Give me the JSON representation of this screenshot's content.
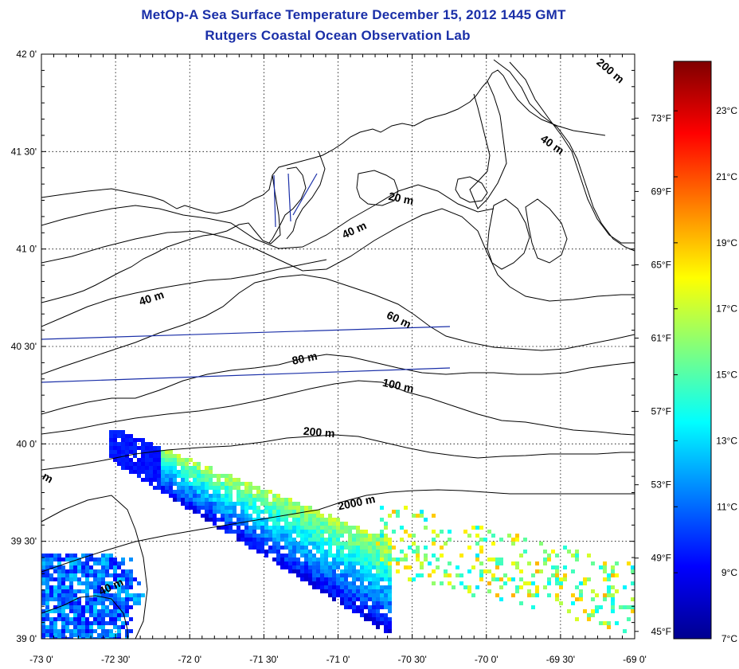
{
  "title": {
    "line1": "MetOp-A Sea Surface Temperature December 15, 2012 1445 GMT",
    "line2": "Rutgers Coastal Ocean Observation Lab"
  },
  "map": {
    "lon_range": [
      -73,
      -69
    ],
    "lat_range": [
      39,
      42
    ],
    "x_ticks": [
      "-73 0'",
      "-72 30'",
      "-72 0'",
      "-71 30'",
      "-71 0'",
      "-70 30'",
      "-70 0'",
      "-69 30'",
      "-69 0'"
    ],
    "y_ticks": [
      "39 0'",
      "39 30'",
      "40 0'",
      "40 30'",
      "41 0'",
      "41 30'",
      "42 0'"
    ],
    "grid": "dotted",
    "land_color": "#ffffff",
    "contour_color": "#000000",
    "transect_color": "#1a2fa8"
  },
  "contour_labels": [
    {
      "text": "200 m",
      "lon": -69.18,
      "lat": 41.9,
      "angle": 40
    },
    {
      "text": "40 m",
      "lon": -69.57,
      "lat": 41.52,
      "angle": 35
    },
    {
      "text": "20 m",
      "lon": -70.58,
      "lat": 41.24,
      "angle": 12
    },
    {
      "text": "40 m",
      "lon": -70.88,
      "lat": 41.08,
      "angle": -25
    },
    {
      "text": "40 m",
      "lon": -72.25,
      "lat": 40.73,
      "angle": -18
    },
    {
      "text": "60 m",
      "lon": -70.6,
      "lat": 40.62,
      "angle": 25
    },
    {
      "text": "80 m",
      "lon": -71.22,
      "lat": 40.42,
      "angle": -12
    },
    {
      "text": "100 m",
      "lon": -70.6,
      "lat": 40.28,
      "angle": 12
    },
    {
      "text": "200 m",
      "lon": -71.13,
      "lat": 40.04,
      "angle": 5
    },
    {
      "text": "2000 m",
      "lon": -70.87,
      "lat": 39.68,
      "angle": -12
    },
    {
      "text": "m",
      "lon": -72.97,
      "lat": 39.81,
      "angle": 30
    },
    {
      "text": "40 m",
      "lon": -72.52,
      "lat": 39.25,
      "angle": -25
    }
  ],
  "colorbar": {
    "colors": [
      "#00008f",
      "#0000ff",
      "#007fff",
      "#00ffff",
      "#7fff7f",
      "#ffff00",
      "#ff7f00",
      "#ff0000",
      "#7f0000"
    ],
    "celsius_labels": [
      "7°C",
      "9°C",
      "11°C",
      "13°C",
      "15°C",
      "17°C",
      "19°C",
      "21°C",
      "23°C"
    ],
    "celsius_values": [
      7,
      9,
      11,
      13,
      15,
      17,
      19,
      21,
      23
    ],
    "fahrenheit_labels": [
      "45°F",
      "49°F",
      "53°F",
      "57°F",
      "61°F",
      "65°F",
      "69°F",
      "73°F"
    ],
    "fahrenheit_values": [
      45,
      49,
      53,
      57,
      61,
      65,
      69,
      73
    ],
    "range_c": [
      7,
      24.5
    ]
  }
}
